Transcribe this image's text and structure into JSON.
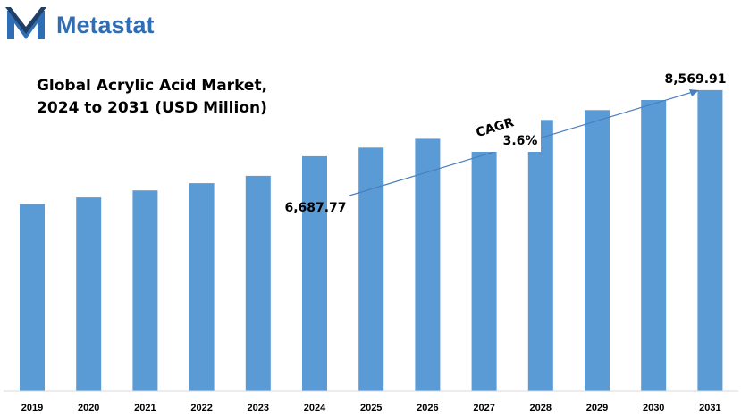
{
  "brand": {
    "name": "Metastat",
    "logo_icon": "metastat-m-logo-icon",
    "text_color": "#2f6db5"
  },
  "colors": {
    "bar": "#5b9bd5",
    "axis": "#d9d9d9",
    "trend_arrow": "#4a7fc1"
  },
  "chart_data": {
    "type": "bar",
    "title_lines": [
      "Global Acrylic Acid Market,",
      "2024 to 2031 (USD Million)"
    ],
    "xlabel": "",
    "ylabel": "",
    "categories": [
      "2019",
      "2020",
      "2021",
      "2022",
      "2023",
      "2024",
      "2025",
      "2026",
      "2027",
      "2028",
      "2029",
      "2030",
      "2031"
    ],
    "values": [
      5325,
      5515,
      5716,
      5921,
      6130,
      6687.77,
      6933,
      7186,
      7448,
      7720,
      8002,
      8288,
      8569.91
    ],
    "ylim": [
      0,
      9000
    ],
    "grid": false,
    "legend": "none",
    "annotations": {
      "start_value_label": "6,687.77",
      "end_value_label": "8,569.91",
      "cagr_label": "CAGR",
      "cagr_value": "3.6%"
    }
  }
}
